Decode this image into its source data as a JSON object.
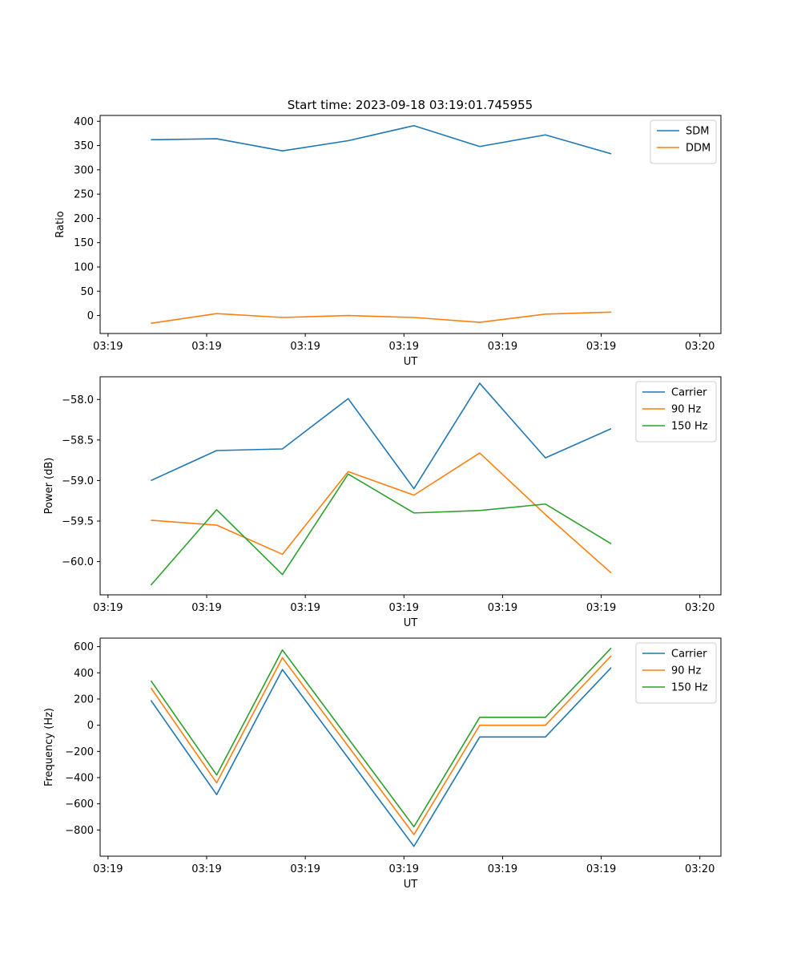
{
  "figure": {
    "title": "Start time: 2023-09-18 03:19:01.745955"
  },
  "chart_data": [
    {
      "type": "line",
      "title": "Start time: 2023-09-18 03:19:01.745955",
      "xlabel": "UT",
      "ylabel": "Ratio",
      "x_tick_labels": [
        "03:19",
        "03:19",
        "03:19",
        "03:19",
        "03:19",
        "03:19",
        "03:20"
      ],
      "xlim": [
        -0.12,
        9.32
      ],
      "ylim": [
        -37,
        412
      ],
      "y_ticks": [
        0,
        50,
        100,
        150,
        200,
        250,
        300,
        350,
        400
      ],
      "legend_position": "top-right",
      "x": [
        0.652,
        1.652,
        2.652,
        3.652,
        4.652,
        5.652,
        6.652,
        7.652
      ],
      "series": [
        {
          "name": "SDM",
          "color": "#1f77b4",
          "values": [
            362,
            364,
            339,
            360,
            391,
            348,
            372,
            333
          ]
        },
        {
          "name": "DDM",
          "color": "#ff7f0e",
          "values": [
            -16,
            4,
            -4,
            0,
            -4,
            -14,
            3,
            7
          ]
        }
      ]
    },
    {
      "type": "line",
      "title": "",
      "xlabel": "UT",
      "ylabel": "Power (dB)",
      "x_tick_labels": [
        "03:19",
        "03:19",
        "03:19",
        "03:19",
        "03:19",
        "03:19",
        "03:20"
      ],
      "xlim": [
        -0.12,
        9.32
      ],
      "ylim": [
        -60.41,
        -57.72
      ],
      "y_ticks": [
        -60.0,
        -59.5,
        -59.0,
        -58.5,
        -58.0
      ],
      "y_tick_labels": [
        "−60.0",
        "−59.5",
        "−59.0",
        "−58.5",
        "−58.0"
      ],
      "legend_position": "top-right",
      "x": [
        0.652,
        1.652,
        2.652,
        3.652,
        4.652,
        5.652,
        6.652,
        7.652
      ],
      "series": [
        {
          "name": "Carrier",
          "color": "#1f77b4",
          "values": [
            -59.0,
            -58.63,
            -58.61,
            -57.99,
            -59.1,
            -57.8,
            -58.72,
            -58.36
          ]
        },
        {
          "name": "90 Hz",
          "color": "#ff7f0e",
          "values": [
            -59.49,
            -59.55,
            -59.91,
            -58.89,
            -59.18,
            -58.66,
            -59.42,
            -60.14
          ]
        },
        {
          "name": "150 Hz",
          "color": "#2ca02c",
          "values": [
            -60.29,
            -59.36,
            -60.16,
            -58.92,
            -59.4,
            -59.37,
            -59.29,
            -59.78
          ]
        }
      ]
    },
    {
      "type": "line",
      "title": "",
      "xlabel": "UT",
      "ylabel": "Frequency (Hz)",
      "x_tick_labels": [
        "03:19",
        "03:19",
        "03:19",
        "03:19",
        "03:19",
        "03:19",
        "03:20"
      ],
      "xlim": [
        -0.12,
        9.32
      ],
      "ylim": [
        -1000,
        665
      ],
      "y_ticks": [
        -800,
        -600,
        -400,
        -200,
        0,
        200,
        400,
        600
      ],
      "y_tick_labels": [
        "−800",
        "−600",
        "−400",
        "−200",
        "0",
        "200",
        "400",
        "600"
      ],
      "legend_position": "top-right",
      "x": [
        0.652,
        1.652,
        2.652,
        3.652,
        4.652,
        5.652,
        6.652,
        7.652
      ],
      "series": [
        {
          "name": "Carrier",
          "color": "#1f77b4",
          "values": [
            190,
            -530,
            425,
            -250,
            -925,
            -90,
            -90,
            440
          ]
        },
        {
          "name": "90 Hz",
          "color": "#ff7f0e",
          "values": [
            285,
            -440,
            515,
            -160,
            -835,
            0,
            0,
            530
          ]
        },
        {
          "name": "150 Hz",
          "color": "#2ca02c",
          "values": [
            340,
            -380,
            575,
            -100,
            -775,
            60,
            60,
            590
          ]
        }
      ]
    }
  ]
}
